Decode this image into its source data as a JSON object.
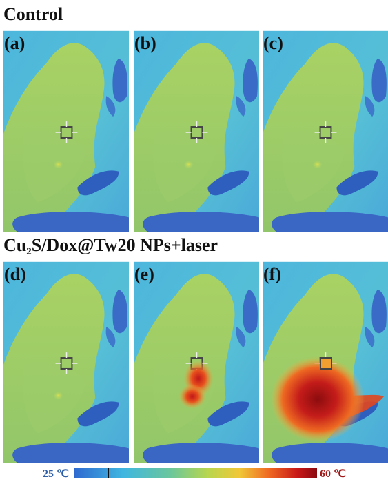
{
  "sections": [
    {
      "title": [
        "Control"
      ],
      "panels": [
        "(a)",
        "(b)",
        "(c)"
      ]
    },
    {
      "title": [
        "Cu",
        "2",
        "S/Dox@Tw20 NPs+laser"
      ],
      "panels": [
        "(d)",
        "(e)",
        "(f)"
      ]
    }
  ],
  "colorbar": {
    "min_label": "25 ℃",
    "max_label": "60 ℃"
  }
}
